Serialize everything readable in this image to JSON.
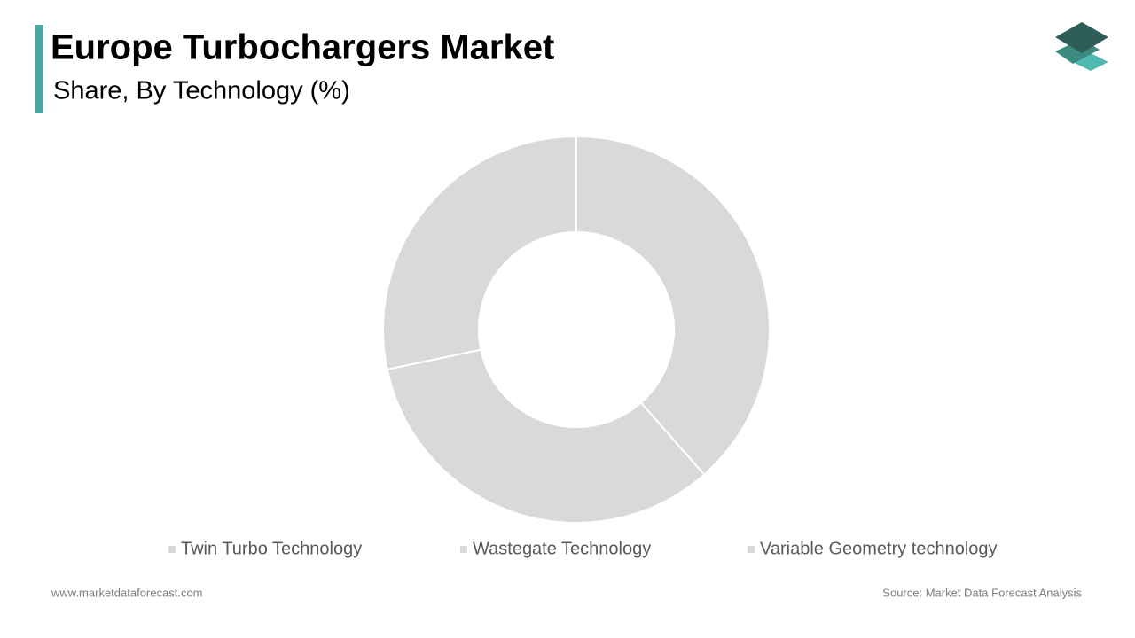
{
  "chart_data": {
    "type": "donut",
    "title": "Europe Turbochargers Market",
    "subtitle": "Share, By Technology (%)",
    "categories": [
      "Twin Turbo Technology",
      "Wastegate Technology",
      "Variable Geometry technology"
    ],
    "values": [
      38.5,
      33.2,
      28.3
    ],
    "colors": [
      "#d9d9d9",
      "#d9d9d9",
      "#d9d9d9"
    ],
    "legend": "bottom"
  },
  "footer": {
    "website": "www.marketdataforecast.com",
    "source": "Source: Market Data Forecast Analysis"
  }
}
